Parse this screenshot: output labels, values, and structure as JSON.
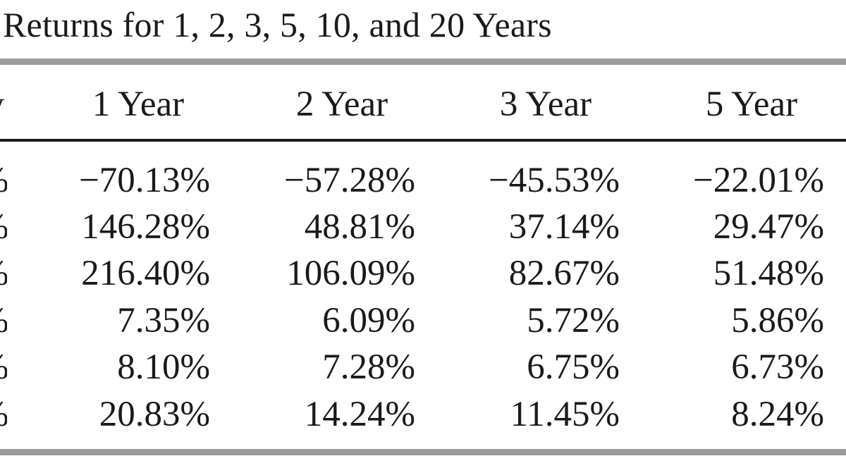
{
  "caption": "Returns for 1, 2, 3, 5, 10, and 20 Years",
  "table": {
    "headers": [
      "y",
      "1 Year",
      "2 Year",
      "3 Year",
      "5 Year"
    ],
    "rows": [
      {
        "stub": "%",
        "values": [
          "−70.13%",
          "−57.28%",
          "−45.53%",
          "−22.01%"
        ]
      },
      {
        "stub": "%",
        "values": [
          "146.28%",
          "48.81%",
          "37.14%",
          "29.47%"
        ]
      },
      {
        "stub": "%",
        "values": [
          "216.40%",
          "106.09%",
          "82.67%",
          "51.48%"
        ]
      },
      {
        "stub": "%",
        "values": [
          "7.35%",
          "6.09%",
          "5.72%",
          "5.86%"
        ]
      },
      {
        "stub": "%",
        "values": [
          "8.10%",
          "7.28%",
          "6.75%",
          "6.73%"
        ]
      },
      {
        "stub": "%",
        "values": [
          "20.83%",
          "14.24%",
          "11.45%",
          "8.24%"
        ]
      }
    ]
  }
}
